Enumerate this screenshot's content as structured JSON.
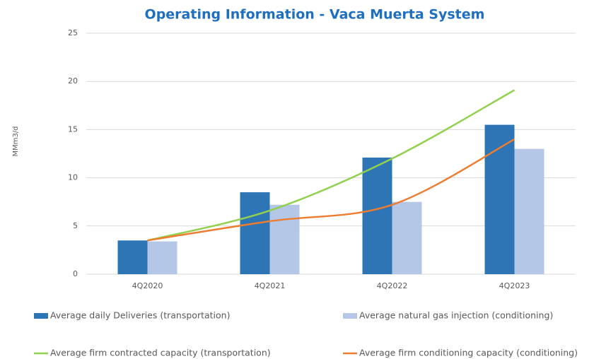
{
  "chart_data": {
    "type": "bar_line",
    "title": "Operating Information - Vaca Muerta System",
    "y_label": "MMm3/d",
    "categories": [
      "4Q2020",
      "4Q2021",
      "4Q2022",
      "4Q2023"
    ],
    "series": [
      {
        "name": "Average daily Deliveries (transportation)",
        "kind": "bar",
        "color": "#2e75b6",
        "values": [
          3.5,
          8.5,
          12.1,
          15.5
        ]
      },
      {
        "name": "Average natural gas injection (conditioning)",
        "kind": "bar",
        "color": "#b4c7e7",
        "values": [
          3.4,
          7.2,
          7.5,
          13
        ]
      },
      {
        "name": "Average firm contracted capacity (transportation)",
        "kind": "line",
        "color": "#92d050",
        "values": [
          3.5,
          6.6,
          12,
          19.1
        ]
      },
      {
        "name": "Average firm conditioning capacity (conditioning)",
        "kind": "line",
        "color": "#ed7d31",
        "values": [
          3.5,
          5.5,
          7.2,
          14
        ]
      }
    ],
    "ylim": [
      0,
      25
    ],
    "yticks": [
      0,
      5,
      10,
      15,
      20,
      25
    ],
    "grid": true
  }
}
